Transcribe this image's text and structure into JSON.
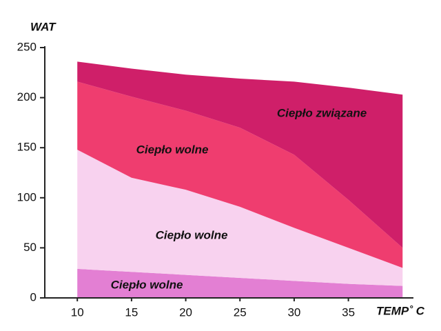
{
  "chart_data": {
    "type": "stacked-area",
    "y_label": "WAT",
    "x_label": "TEMP˚ C",
    "x": [
      10,
      15,
      20,
      25,
      30,
      35,
      40
    ],
    "series": [
      {
        "name": "Ciepło wolne",
        "color": "#e37fd3",
        "values": [
          29,
          26,
          23,
          20,
          17,
          14,
          12
        ]
      },
      {
        "name": "Ciepło wolne",
        "color": "#f8d2ef",
        "values": [
          119,
          94,
          85,
          71,
          53,
          36,
          18
        ]
      },
      {
        "name": "Ciepło wolne",
        "color": "#ef3d6f",
        "values": [
          68,
          81,
          79,
          79,
          73,
          48,
          20
        ]
      },
      {
        "name": "Ciepło związane",
        "color": "#cf1f69",
        "values": [
          20,
          28,
          36,
          49,
          73,
          112,
          153
        ]
      }
    ],
    "xlim": [
      7,
      41
    ],
    "ylim": [
      0,
      250
    ],
    "xticks": [
      10,
      15,
      20,
      25,
      30,
      35
    ],
    "yticks": [
      0,
      50,
      100,
      150,
      200,
      250
    ]
  }
}
